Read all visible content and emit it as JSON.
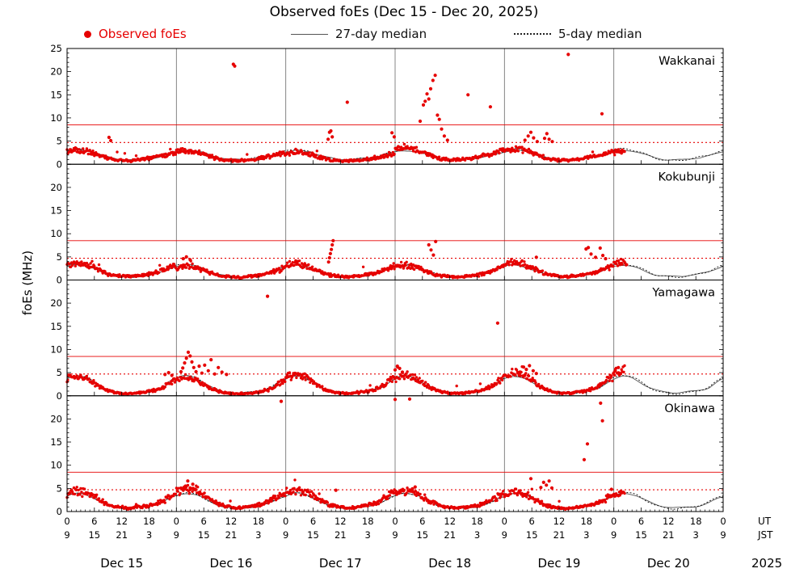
{
  "title": "Observed foEs (Dec 15 - Dec 20, 2025)",
  "legend": {
    "observed": "Observed foEs",
    "median27": "27-day median",
    "median5": "5-day median"
  },
  "ylabel": "foEs (MHz)",
  "colors": {
    "observed": "#e60000",
    "median27": "#555555",
    "median5": "#111111",
    "threshold": "#e60000",
    "day_separator": "#777777",
    "frame": "#000000"
  },
  "axis": {
    "hours_total": 144,
    "tick_step_hours": 6,
    "ut_cycle": [
      "0",
      "6",
      "12",
      "18"
    ],
    "jst_cycle": [
      "9",
      "15",
      "21",
      "3"
    ],
    "ut_caption": "UT",
    "jst_caption": "JST",
    "day_labels": [
      "Dec 15",
      "Dec 16",
      "Dec 17",
      "Dec 18",
      "Dec 19",
      "Dec 20"
    ],
    "year_label": "2025",
    "ymax": 25,
    "ytick_step": 5
  },
  "thresholds": {
    "solid_mhz": 8.5,
    "dotted_mhz": 4.7
  },
  "chart_data": [
    {
      "station": "Wakkanai",
      "type": "scatter",
      "x_unit": "hours since Dec 15 00:00 UT",
      "y_unit": "MHz",
      "ylim": [
        0,
        25
      ],
      "observed_end_hour": 122.5,
      "sample_step_hours": 0.1667,
      "noise_seed": 11,
      "median27_diurnal_ut": [
        2.7,
        2.9,
        3.0,
        3.0,
        2.9,
        2.7,
        2.4,
        2.1,
        1.8,
        1.5,
        1.3,
        1.1,
        1.0,
        1.0,
        1.0,
        1.0,
        1.1,
        1.2,
        1.3,
        1.4,
        1.6,
        1.8,
        2.1,
        2.4
      ],
      "median5_diurnal_ut": [
        2.9,
        3.2,
        3.3,
        3.2,
        3.0,
        2.8,
        2.5,
        2.1,
        1.7,
        1.4,
        1.1,
        1.0,
        0.9,
        0.9,
        0.9,
        1.0,
        1.1,
        1.2,
        1.4,
        1.6,
        1.8,
        2.0,
        2.3,
        2.6
      ],
      "spikes": [
        [
          9.2,
          5.8
        ],
        [
          9.6,
          5.1
        ],
        [
          36.5,
          21.6
        ],
        [
          36.8,
          21.2
        ],
        [
          57.3,
          5.4
        ],
        [
          57.6,
          6.9
        ],
        [
          57.9,
          7.2
        ],
        [
          58.2,
          5.9
        ],
        [
          61.5,
          13.4
        ],
        [
          71.3,
          6.8
        ],
        [
          71.8,
          5.9
        ],
        [
          77.5,
          9.3
        ],
        [
          78.2,
          12.8
        ],
        [
          78.6,
          13.6
        ],
        [
          79.0,
          15.2
        ],
        [
          79.4,
          14.1
        ],
        [
          79.8,
          16.3
        ],
        [
          80.3,
          18.1
        ],
        [
          80.8,
          19.2
        ],
        [
          81.3,
          10.6
        ],
        [
          81.7,
          9.7
        ],
        [
          82.2,
          7.6
        ],
        [
          82.8,
          6.1
        ],
        [
          83.5,
          5.2
        ],
        [
          88.0,
          15.0
        ],
        [
          92.9,
          12.4
        ],
        [
          100.5,
          5.2
        ],
        [
          101.2,
          6.1
        ],
        [
          101.8,
          6.9
        ],
        [
          102.4,
          5.7
        ],
        [
          103.2,
          4.9
        ],
        [
          104.8,
          5.6
        ],
        [
          105.3,
          6.6
        ],
        [
          105.8,
          5.4
        ],
        [
          106.5,
          4.9
        ],
        [
          110.0,
          23.7
        ],
        [
          117.4,
          10.9
        ]
      ]
    },
    {
      "station": "Kokubunji",
      "type": "scatter",
      "x_unit": "hours since Dec 15 00:00 UT",
      "y_unit": "MHz",
      "ylim": [
        0,
        25
      ],
      "observed_end_hour": 123,
      "sample_step_hours": 0.1667,
      "noise_seed": 22,
      "median27_diurnal_ut": [
        3.0,
        3.2,
        3.3,
        3.2,
        3.0,
        2.7,
        2.3,
        1.9,
        1.5,
        1.2,
        1.0,
        0.9,
        0.8,
        0.8,
        0.8,
        0.8,
        0.9,
        1.0,
        1.1,
        1.3,
        1.5,
        1.8,
        2.2,
        2.6
      ],
      "median5_diurnal_ut": [
        3.1,
        3.3,
        3.4,
        3.3,
        3.1,
        2.8,
        2.4,
        2.0,
        1.6,
        1.2,
        1.0,
        0.9,
        0.8,
        0.7,
        0.7,
        0.8,
        0.9,
        1.0,
        1.2,
        1.4,
        1.6,
        1.9,
        2.3,
        2.7
      ],
      "spikes": [
        [
          25.5,
          4.6
        ],
        [
          26.2,
          5.0
        ],
        [
          27.0,
          4.4
        ],
        [
          57.4,
          3.9
        ],
        [
          57.6,
          4.8
        ],
        [
          57.8,
          5.7
        ],
        [
          58.0,
          6.6
        ],
        [
          58.2,
          7.6
        ],
        [
          58.4,
          8.5
        ],
        [
          79.4,
          7.6
        ],
        [
          79.9,
          6.5
        ],
        [
          80.4,
          5.4
        ],
        [
          80.9,
          8.3
        ],
        [
          103.0,
          4.9
        ],
        [
          113.9,
          6.7
        ],
        [
          114.4,
          7.0
        ],
        [
          115.0,
          5.6
        ],
        [
          116.0,
          4.9
        ],
        [
          117.0,
          6.9
        ],
        [
          117.6,
          5.3
        ],
        [
          118.2,
          4.6
        ]
      ]
    },
    {
      "station": "Yamagawa",
      "type": "scatter",
      "x_unit": "hours since Dec 15 00:00 UT",
      "y_unit": "MHz",
      "ylim": [
        0,
        25
      ],
      "observed_end_hour": 122.5,
      "sample_step_hours": 0.1667,
      "noise_seed": 33,
      "median27_diurnal_ut": [
        3.7,
        4.1,
        4.3,
        4.2,
        3.9,
        3.4,
        2.8,
        2.2,
        1.7,
        1.3,
        1.0,
        0.8,
        0.7,
        0.6,
        0.6,
        0.7,
        0.8,
        0.9,
        1.0,
        1.2,
        1.4,
        1.8,
        2.5,
        3.2
      ],
      "median5_diurnal_ut": [
        3.8,
        4.2,
        4.4,
        4.3,
        4.0,
        3.5,
        2.9,
        2.3,
        1.7,
        1.2,
        0.9,
        0.7,
        0.6,
        0.5,
        0.5,
        0.6,
        0.7,
        0.8,
        1.0,
        1.2,
        1.5,
        1.9,
        2.6,
        3.3
      ],
      "spikes": [
        [
          21.5,
          4.6
        ],
        [
          22.3,
          5.0
        ],
        [
          23.0,
          4.4
        ],
        [
          25.0,
          5.2
        ],
        [
          25.4,
          6.0
        ],
        [
          25.8,
          7.1
        ],
        [
          26.2,
          8.1
        ],
        [
          26.6,
          9.4
        ],
        [
          27.0,
          8.6
        ],
        [
          27.4,
          7.3
        ],
        [
          27.8,
          6.1
        ],
        [
          28.3,
          5.2
        ],
        [
          29.0,
          6.4
        ],
        [
          29.6,
          4.9
        ],
        [
          30.2,
          6.6
        ],
        [
          31.0,
          5.4
        ],
        [
          31.6,
          7.8
        ],
        [
          32.4,
          4.7
        ],
        [
          33.2,
          6.1
        ],
        [
          34.0,
          5.1
        ],
        [
          35.0,
          4.6
        ],
        [
          44.0,
          21.5
        ],
        [
          72.0,
          5.6
        ],
        [
          72.5,
          6.4
        ],
        [
          73.0,
          5.9
        ],
        [
          73.6,
          5.1
        ],
        [
          94.5,
          15.7
        ],
        [
          99.5,
          5.1
        ],
        [
          100.2,
          6.2
        ],
        [
          100.8,
          5.7
        ],
        [
          101.5,
          6.5
        ],
        [
          102.3,
          5.4
        ],
        [
          103.0,
          4.8
        ],
        [
          120.3,
          5.4
        ],
        [
          121.0,
          6.1
        ]
      ]
    },
    {
      "station": "Okinawa",
      "type": "scatter",
      "x_unit": "hours since Dec 15 00:00 UT",
      "y_unit": "MHz",
      "ylim": [
        0,
        25
      ],
      "observed_end_hour": 122.5,
      "sample_step_hours": 0.1667,
      "noise_seed": 44,
      "median27_diurnal_ut": [
        3.3,
        3.7,
        3.9,
        3.9,
        3.7,
        3.4,
        2.9,
        2.4,
        1.9,
        1.5,
        1.2,
        1.0,
        0.9,
        0.8,
        0.8,
        0.8,
        0.9,
        1.0,
        1.1,
        1.3,
        1.6,
        2.0,
        2.5,
        3.0
      ],
      "median5_diurnal_ut": [
        3.4,
        3.8,
        4.0,
        4.0,
        3.8,
        3.5,
        3.0,
        2.4,
        1.9,
        1.4,
        1.1,
        0.9,
        0.8,
        0.7,
        0.7,
        0.8,
        0.9,
        1.0,
        1.2,
        1.4,
        1.7,
        2.1,
        2.6,
        3.1
      ],
      "spikes": [
        [
          25.5,
          4.9
        ],
        [
          26.0,
          5.5
        ],
        [
          26.5,
          6.6
        ],
        [
          27.0,
          5.1
        ],
        [
          27.6,
          5.9
        ],
        [
          28.2,
          4.7
        ],
        [
          47.0,
          23.8
        ],
        [
          59.0,
          4.6
        ],
        [
          72.0,
          24.2
        ],
        [
          75.2,
          24.3
        ],
        [
          75.8,
          4.9
        ],
        [
          76.4,
          5.3
        ],
        [
          101.8,
          7.1
        ],
        [
          104.0,
          5.2
        ],
        [
          104.6,
          6.3
        ],
        [
          105.2,
          5.7
        ],
        [
          105.8,
          6.6
        ],
        [
          106.4,
          5.1
        ],
        [
          113.5,
          11.2
        ],
        [
          114.2,
          14.6
        ],
        [
          117.1,
          23.4
        ],
        [
          117.5,
          19.6
        ],
        [
          119.5,
          4.8
        ]
      ]
    }
  ]
}
